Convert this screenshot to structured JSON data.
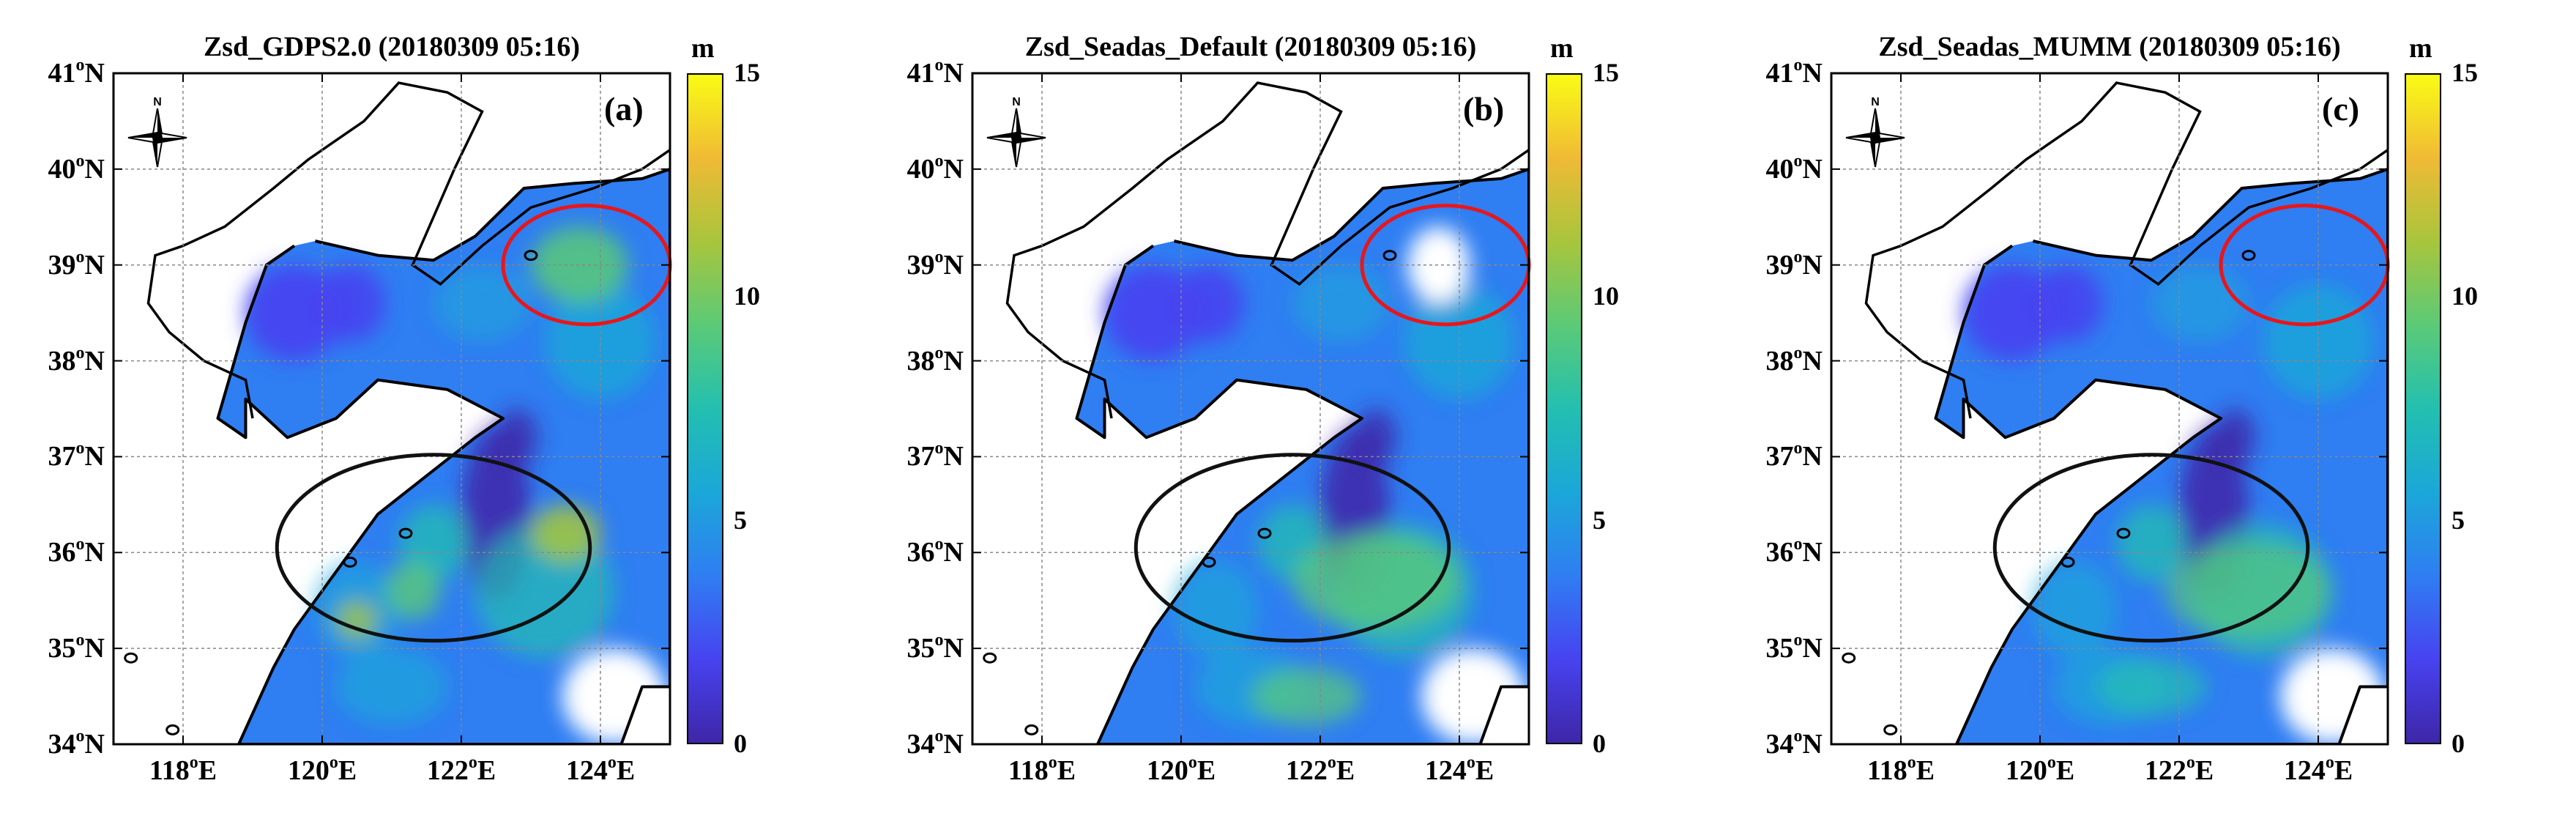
{
  "panels": [
    {
      "title": "Zsd_GDPS2.0 (20180309 05:16)",
      "label": "(a)",
      "variant": "gdps"
    },
    {
      "title": "Zsd_Seadas_Default (20180309 05:16)",
      "label": "(b)",
      "variant": "default"
    },
    {
      "title": "Zsd_Seadas_MUMM (20180309 05:16)",
      "label": "(c)",
      "variant": "mumm"
    }
  ],
  "axes": {
    "lat": {
      "range": [
        34,
        41
      ],
      "ticks": [
        {
          "deg": "41",
          "hem": "N"
        },
        {
          "deg": "40",
          "hem": "N"
        },
        {
          "deg": "39",
          "hem": "N"
        },
        {
          "deg": "38",
          "hem": "N"
        },
        {
          "deg": "37",
          "hem": "N"
        },
        {
          "deg": "36",
          "hem": "N"
        },
        {
          "deg": "35",
          "hem": "N"
        },
        {
          "deg": "34",
          "hem": "N"
        }
      ]
    },
    "lon": {
      "range": [
        117,
        125
      ],
      "ticks": [
        {
          "deg": "118",
          "hem": "E"
        },
        {
          "deg": "120",
          "hem": "E"
        },
        {
          "deg": "122",
          "hem": "E"
        },
        {
          "deg": "124",
          "hem": "E"
        }
      ]
    }
  },
  "colorbar": {
    "unit": "m",
    "min": 0,
    "max": 15,
    "ticks": [
      "15",
      "10",
      "5",
      "0"
    ],
    "colors": [
      "#3e26a8",
      "#4743f0",
      "#2f7ef2",
      "#1ba7d8",
      "#23bfb0",
      "#5bca77",
      "#a8c53c",
      "#f0ba35",
      "#f9fb15"
    ]
  },
  "annotations": {
    "red_ellipse_color": "#e8161b",
    "black_ellipse_color": "#111111"
  },
  "compass": {
    "north_label": "N"
  }
}
